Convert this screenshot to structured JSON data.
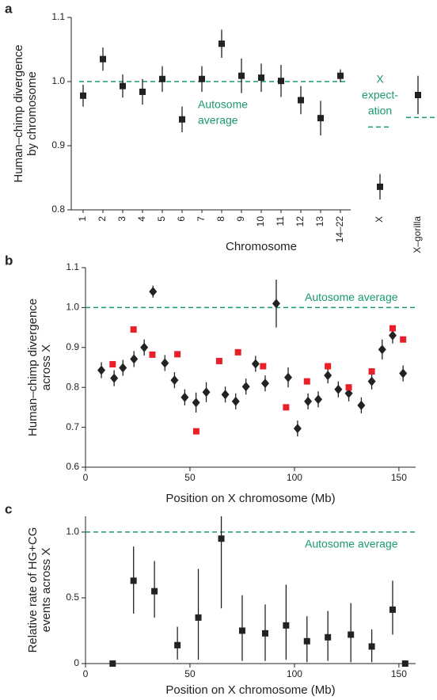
{
  "chart_data": [
    {
      "type": "errorbar",
      "panel_label": "a",
      "ylabel": [
        "Human–chimp divergence",
        "by chromosome"
      ],
      "xlabel": "Chromosome",
      "categories": [
        "1",
        "2",
        "3",
        "4",
        "5",
        "6",
        "7",
        "8",
        "9",
        "10",
        "11",
        "12",
        "13",
        "14–22",
        "X",
        "X–gorilla"
      ],
      "values": [
        0.978,
        1.035,
        0.993,
        0.984,
        1.004,
        0.941,
        1.004,
        1.059,
        1.009,
        1.006,
        1.001,
        0.971,
        0.943,
        1.009,
        0.836,
        0.979
      ],
      "errors": [
        0.017,
        0.018,
        0.018,
        0.02,
        0.02,
        0.02,
        0.02,
        0.022,
        0.027,
        0.022,
        0.025,
        0.022,
        0.027,
        0.01,
        0.02,
        0.03
      ],
      "color": "#222222",
      "ylim": [
        0.8,
        1.1
      ],
      "yticks": [
        0.8,
        0.9,
        {
          "value": 1,
          "label": "1.0"
        },
        1.1
      ],
      "reference_line": 1,
      "reference_label": [
        "Autosome",
        "average"
      ],
      "expectation_line": 0.944,
      "expectation_label": [
        "X",
        "expect-",
        "ation"
      ],
      "reference_color": "#1a9a6a"
    },
    {
      "type": "scatter",
      "panel_label": "b",
      "ylabel": [
        "Human–chimp divergence",
        "across X"
      ],
      "xlabel": "Position on X chromosome (Mb)",
      "xlim": [
        0,
        158
      ],
      "xticks": [
        0,
        50,
        100,
        150
      ],
      "ylim": [
        0.6,
        1.1
      ],
      "yticks": [
        0.6,
        0.7,
        0.8,
        0.9,
        {
          "value": 1,
          "label": "1.0"
        },
        1.1
      ],
      "series": [
        {
          "marker": "diamond",
          "color": "#222222",
          "x": [
            7.6,
            13.7,
            17.9,
            23.2,
            28.1,
            32.3,
            38,
            42.6,
            47.5,
            52.9,
            57.8,
            66.9,
            71.9,
            76.8,
            81.4,
            86,
            91.3,
            97,
            101.5,
            106.5,
            111.4,
            116,
            121,
            126,
            132,
            137,
            142,
            147,
            152
          ],
          "values": [
            0.843,
            0.823,
            0.849,
            0.871,
            0.9,
            1.04,
            0.861,
            0.818,
            0.775,
            0.762,
            0.788,
            0.782,
            0.765,
            0.802,
            0.859,
            0.81,
            1.01,
            0.825,
            0.697,
            0.765,
            0.77,
            0.83,
            0.795,
            0.785,
            0.755,
            0.815,
            0.895,
            0.93,
            0.835
          ],
          "errors": [
            0.02,
            0.02,
            0.02,
            0.02,
            0.02,
            0.015,
            0.02,
            0.02,
            0.02,
            0.025,
            0.025,
            0.02,
            0.02,
            0.02,
            0.02,
            0.02,
            0.06,
            0.025,
            0.02,
            0.02,
            0.02,
            0.02,
            0.02,
            0.02,
            0.02,
            0.02,
            0.025,
            0.02,
            0.02
          ]
        },
        {
          "marker": "square",
          "color": "#e8202a",
          "x": [
            13,
            23,
            32,
            44,
            53,
            64,
            73,
            85,
            96,
            106,
            116,
            126,
            137,
            147,
            152
          ],
          "values": [
            0.858,
            0.945,
            0.882,
            0.883,
            0.69,
            0.866,
            0.888,
            0.853,
            0.75,
            0.815,
            0.853,
            0.8,
            0.84,
            0.948,
            0.92
          ]
        }
      ],
      "reference_line": 1,
      "reference_label": "Autosome average",
      "reference_color": "#1a9a6a"
    },
    {
      "type": "errorbar",
      "panel_label": "c",
      "ylabel": [
        "Relative rate of HG+CG",
        "events across X"
      ],
      "xlabel": "Position on X chromosome (Mb)",
      "xlim": [
        0,
        158
      ],
      "xticks": [
        0,
        50,
        100,
        150
      ],
      "ylim": [
        0,
        1.12
      ],
      "yticks": [
        0,
        0.5,
        {
          "value": 1,
          "label": "1.0"
        }
      ],
      "x": [
        13,
        23,
        33,
        44,
        54,
        65,
        75,
        86,
        96,
        106,
        116,
        127,
        137,
        147,
        153
      ],
      "values": [
        0,
        0.63,
        0.55,
        0.14,
        0.35,
        0.95,
        0.25,
        0.23,
        0.29,
        0.17,
        0.2,
        0.22,
        0.13,
        0.41,
        0
      ],
      "lower": [
        0,
        0.38,
        0.35,
        0.03,
        0.03,
        0.42,
        0.02,
        0.02,
        0.03,
        0.01,
        0.02,
        0.01,
        0.01,
        0.22,
        0
      ],
      "upper": [
        0,
        0.89,
        0.78,
        0.28,
        0.72,
        1.12,
        0.52,
        0.45,
        0.6,
        0.36,
        0.4,
        0.46,
        0.26,
        0.63,
        0
      ],
      "color": "#222222",
      "reference_line": 1,
      "reference_label": "Autosome average",
      "reference_color": "#1a9a6a"
    }
  ]
}
